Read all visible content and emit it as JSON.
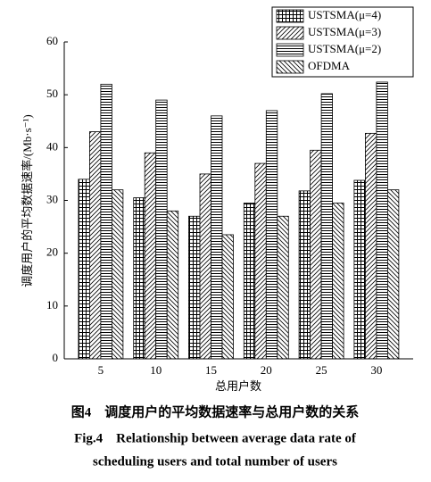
{
  "chart_data": {
    "type": "bar",
    "ylabel": "调度用户的平均数据速率/(Mb·s⁻¹)",
    "xlabel": "总用户数",
    "caption_cn": "图4　调度用户的平均数据速率与总用户数的关系",
    "caption_en": [
      "Fig.4　Relationship between average data rate of",
      "scheduling users and total number of users"
    ],
    "categories": [
      "5",
      "10",
      "15",
      "20",
      "25",
      "30"
    ],
    "series": [
      {
        "name": "USTSMA(μ=4)",
        "color": "#000000",
        "hatch": "grid",
        "values": [
          34,
          30.5,
          27,
          29.5,
          31.8,
          33.8
        ]
      },
      {
        "name": "USTSMA(μ=3)",
        "color": "#000000",
        "hatch": "slash",
        "values": [
          43,
          39,
          35,
          37,
          39.5,
          42.7
        ]
      },
      {
        "name": "USTSMA(μ=2)",
        "color": "#000000",
        "hatch": "horizontal",
        "values": [
          52,
          49,
          46,
          47,
          50.2,
          52.4
        ]
      },
      {
        "name": "OFDMA",
        "color": "#000000",
        "hatch": "backslash",
        "values": [
          32,
          28,
          23.5,
          27,
          29.5,
          32
        ]
      }
    ],
    "ylim": [
      0,
      60
    ],
    "yticks": [
      0,
      10,
      20,
      30,
      40,
      50,
      60
    ],
    "legend": "upper right"
  }
}
